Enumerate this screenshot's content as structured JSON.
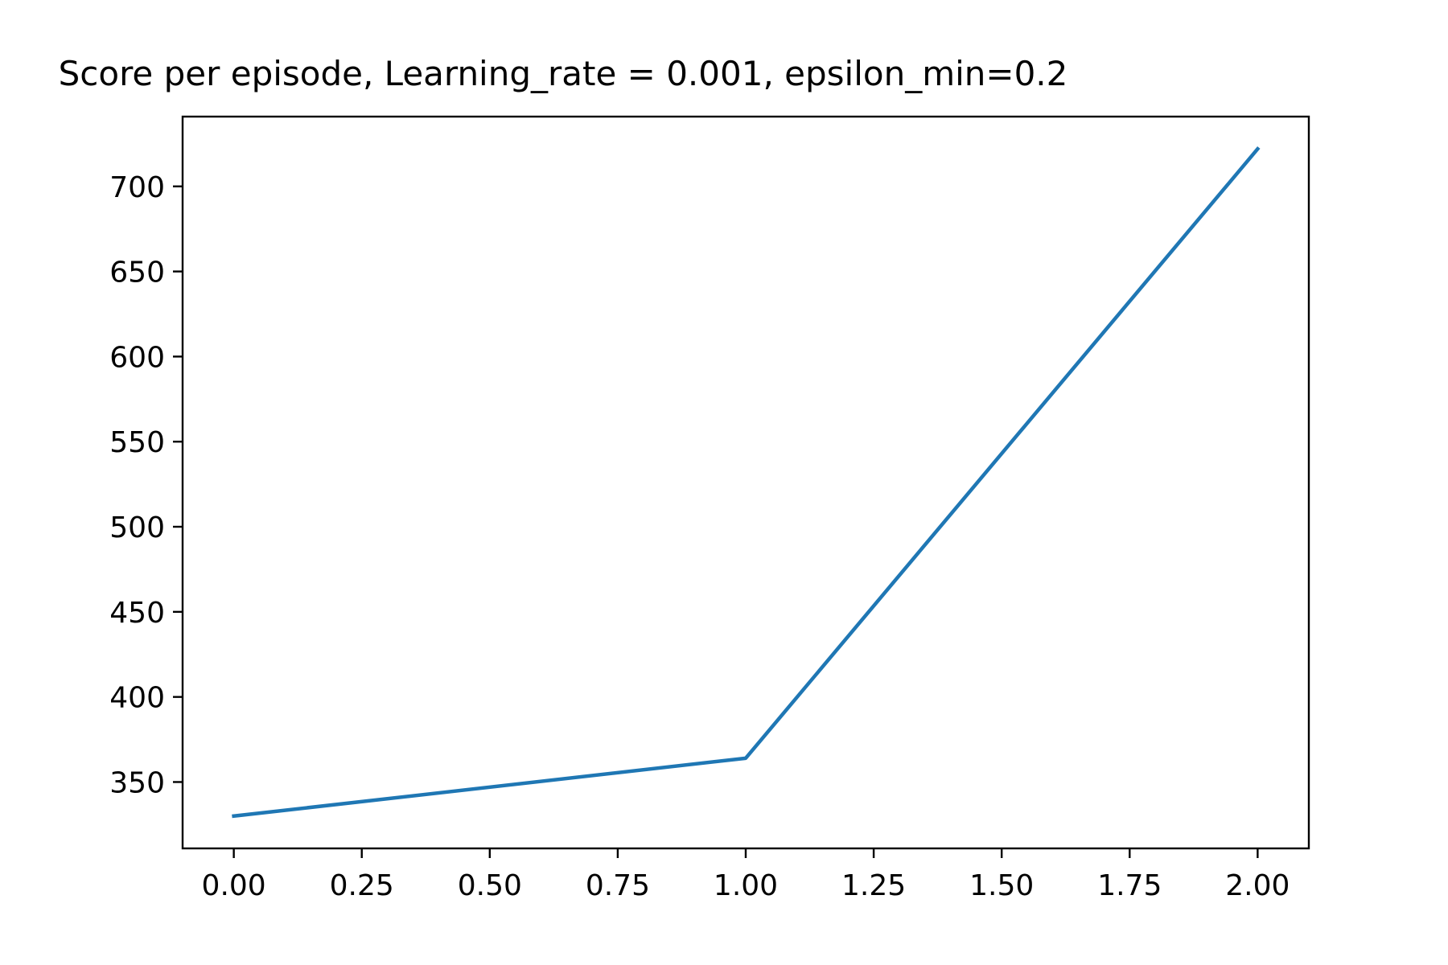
{
  "chart_data": {
    "type": "line",
    "title": "Score per episode, Learning_rate = 0.001, epsilon_min=0.2",
    "xlabel": "",
    "ylabel": "",
    "x": [
      0,
      1,
      2
    ],
    "series": [
      {
        "values": [
          330,
          364,
          722
        ],
        "color": "#1f77b4"
      }
    ],
    "xlim": [
      -0.1,
      2.1
    ],
    "ylim": [
      311,
      741
    ],
    "xticks": [
      0,
      0.25,
      0.5,
      0.75,
      1,
      1.25,
      1.5,
      1.75,
      2
    ],
    "xtick_labels": [
      "0.00",
      "0.25",
      "0.50",
      "0.75",
      "1.00",
      "1.25",
      "1.50",
      "1.75",
      "2.00"
    ],
    "yticks": [
      350,
      400,
      450,
      500,
      550,
      600,
      650,
      700
    ],
    "ytick_labels": [
      "350",
      "400",
      "450",
      "500",
      "550",
      "600",
      "650",
      "700"
    ],
    "grid": false,
    "legend": "none"
  }
}
